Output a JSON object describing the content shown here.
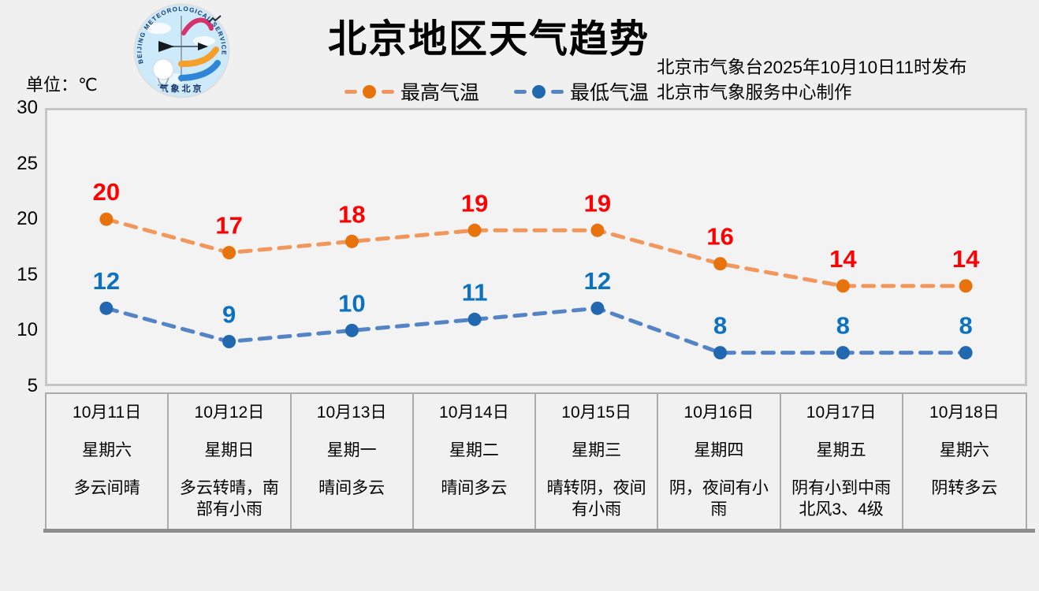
{
  "header": {
    "title": "北京地区天气趋势",
    "issued_line1": "北京市气象台2025年10月10日11时发布",
    "issued_line2": "北京市气象服务中心制作",
    "unit_label": "单位：℃",
    "logo": {
      "ring_text": "BEIJING  METEOROLOGICAL  SERVICE",
      "bottom_text": "气象北京"
    }
  },
  "legend": {
    "items": [
      {
        "label": "最高气温",
        "line_color": "#F2975C",
        "dot_color": "#E8730C"
      },
      {
        "label": "最低气温",
        "line_color": "#5584C6",
        "dot_color": "#2168B0"
      }
    ]
  },
  "chart_data": {
    "type": "line",
    "title": "北京地区天气趋势",
    "unit": "℃",
    "line_style": "dashed",
    "grid": false,
    "legend_position": "top-center",
    "ylim": [
      5,
      30
    ],
    "yticks": [
      30,
      25,
      20,
      15,
      10,
      5
    ],
    "categories": [
      "10月11日",
      "10月12日",
      "10月13日",
      "10月14日",
      "10月15日",
      "10月16日",
      "10月17日",
      "10月18日"
    ],
    "weekdays": [
      "星期六",
      "星期日",
      "星期一",
      "星期二",
      "星期三",
      "星期四",
      "星期五",
      "星期六"
    ],
    "weather": [
      "多云间晴",
      "多云转晴，南部有小雨",
      "晴间多云",
      "晴间多云",
      "晴转阴，夜间有小雨",
      "阴，夜间有小雨",
      "阴有小到中雨北风3、4级",
      "阴转多云"
    ],
    "series": [
      {
        "name": "最高气温",
        "values": [
          20,
          17,
          18,
          19,
          19,
          16,
          14,
          14
        ],
        "line_color": "#F2975C",
        "dot_color": "#E8730C",
        "label_color": "#FD0002"
      },
      {
        "name": "最低气温",
        "values": [
          12,
          9,
          10,
          11,
          12,
          8,
          8,
          8
        ],
        "line_color": "#5584C6",
        "dot_color": "#2168B0",
        "label_color": "#0C71BE"
      }
    ]
  }
}
